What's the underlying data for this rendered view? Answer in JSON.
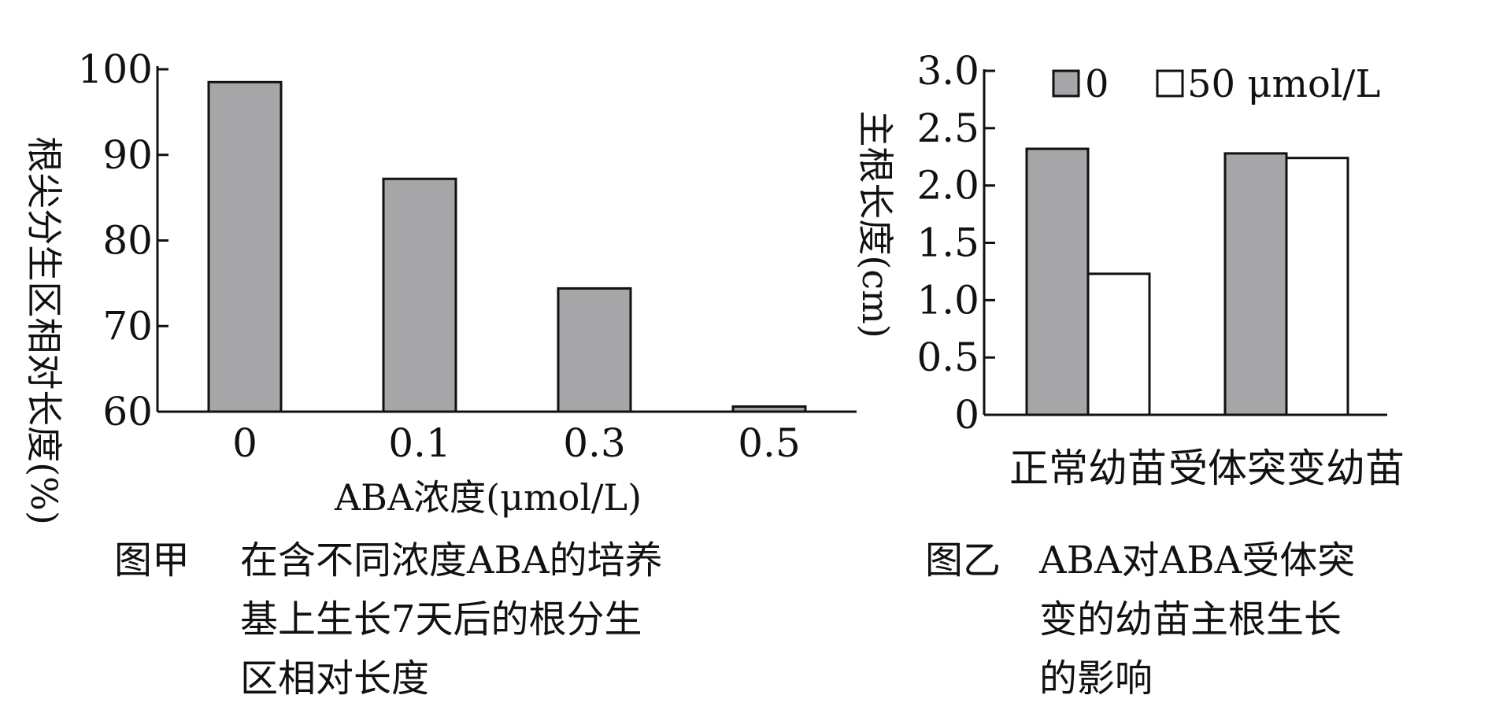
{
  "chart_data": [
    {
      "type": "bar",
      "categories": [
        "0",
        "0.1",
        "0.3",
        "0.5"
      ],
      "values": [
        98.5,
        87.2,
        74.4,
        60.6
      ],
      "xlabel": "ABA浓度(μmol/L)",
      "ylabel": "根尖分生区相对长度(%)",
      "ylim": [
        60,
        100
      ],
      "yticks": [
        "100",
        "90",
        "80",
        "70",
        "60"
      ],
      "bar_color": "#a6a5a8",
      "grid": false,
      "caption_label": "图甲",
      "caption_lines": [
        "在含不同浓度ABA的培养",
        "基上生长7天后的根分生",
        "区相对长度"
      ]
    },
    {
      "type": "bar",
      "categories": [
        "正常幼苗",
        "受体突变幼苗"
      ],
      "series": [
        {
          "name": "0",
          "values": [
            2.32,
            2.28
          ],
          "color": "#a6a5a8"
        },
        {
          "name": "50 μmol/L",
          "values": [
            1.23,
            2.24
          ],
          "color": "#ffffff"
        }
      ],
      "ylabel": "主根长度(cm)",
      "ylim": [
        0,
        3.0
      ],
      "yticks": [
        "3.0",
        "2.5",
        "2.0",
        "1.5",
        "1.0",
        "0.5",
        "0"
      ],
      "legend_position": "top",
      "grid": false,
      "caption_label": "图乙",
      "caption_lines": [
        "ABA对ABA受体突",
        "变的幼苗主根生长",
        "的影响"
      ]
    }
  ]
}
